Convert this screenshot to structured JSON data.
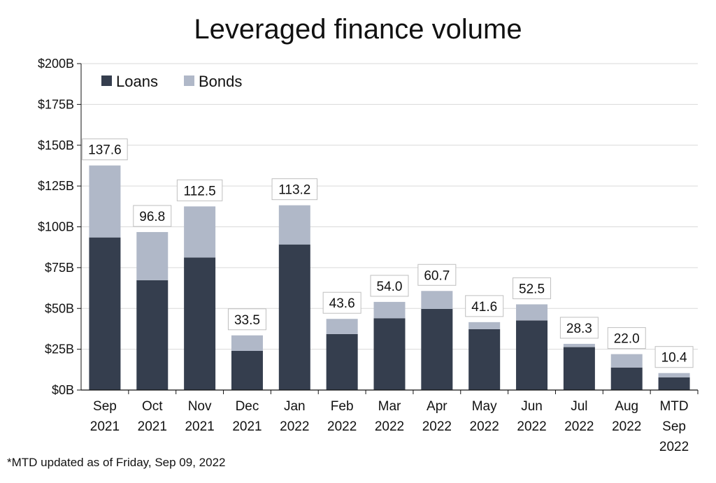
{
  "title": "Leveraged finance volume",
  "footnote": "*MTD updated as of Friday, Sep 09, 2022",
  "colors": {
    "loans": "#353e4e",
    "bonds": "#b0b8c8",
    "grid": "#d9d9d9",
    "axis": "#111111"
  },
  "chart_data": {
    "type": "bar",
    "stacked": true,
    "title": "Leveraged finance volume",
    "xlabel": "",
    "ylabel": "",
    "ylim": [
      0,
      200
    ],
    "y_ticks": [
      0,
      25,
      50,
      75,
      100,
      125,
      150,
      175,
      200
    ],
    "y_tick_labels": [
      "$0B",
      "$25B",
      "$50B",
      "$75B",
      "$100B",
      "$125B",
      "$150B",
      "$175B",
      "$200B"
    ],
    "grid": true,
    "legend_position": "top-left",
    "categories": [
      [
        "Sep",
        "2021"
      ],
      [
        "Oct",
        "2021"
      ],
      [
        "Nov",
        "2021"
      ],
      [
        "Dec",
        "2021"
      ],
      [
        "Jan",
        "2022"
      ],
      [
        "Feb",
        "2022"
      ],
      [
        "Mar",
        "2022"
      ],
      [
        "Apr",
        "2022"
      ],
      [
        "May",
        "2022"
      ],
      [
        "Jun",
        "2022"
      ],
      [
        "Jul",
        "2022"
      ],
      [
        "Aug",
        "2022"
      ],
      [
        "MTD",
        "Sep",
        "2022"
      ]
    ],
    "series": [
      {
        "name": "Loans",
        "values": [
          93.5,
          67.3,
          81.2,
          24.0,
          89.2,
          34.3,
          44.0,
          49.7,
          37.3,
          42.6,
          26.3,
          13.8,
          7.8
        ]
      },
      {
        "name": "Bonds",
        "values": [
          44.1,
          29.5,
          31.3,
          9.5,
          24.0,
          9.3,
          10.0,
          11.0,
          4.3,
          9.9,
          2.0,
          8.2,
          2.6
        ]
      }
    ],
    "totals": [
      "137.6",
      "96.8",
      "112.5",
      "33.5",
      "113.2",
      "43.6",
      "54.0",
      "60.7",
      "41.6",
      "52.5",
      "28.3",
      "22.0",
      "10.4"
    ]
  }
}
